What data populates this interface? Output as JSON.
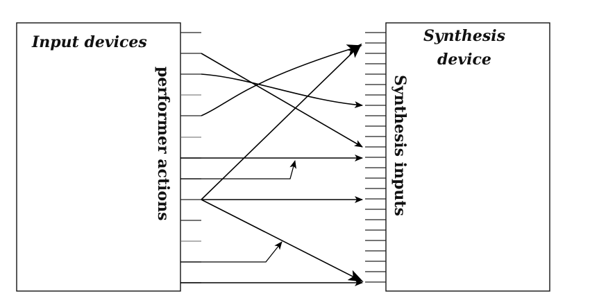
{
  "diagram": {
    "left_box": {
      "title": "Input devices",
      "side_label": "performer actions"
    },
    "right_box": {
      "title_line1": "Synthesis",
      "title_line2": "device",
      "side_label": "Synthesis inputs"
    },
    "arrowhead_color": "#000000"
  }
}
